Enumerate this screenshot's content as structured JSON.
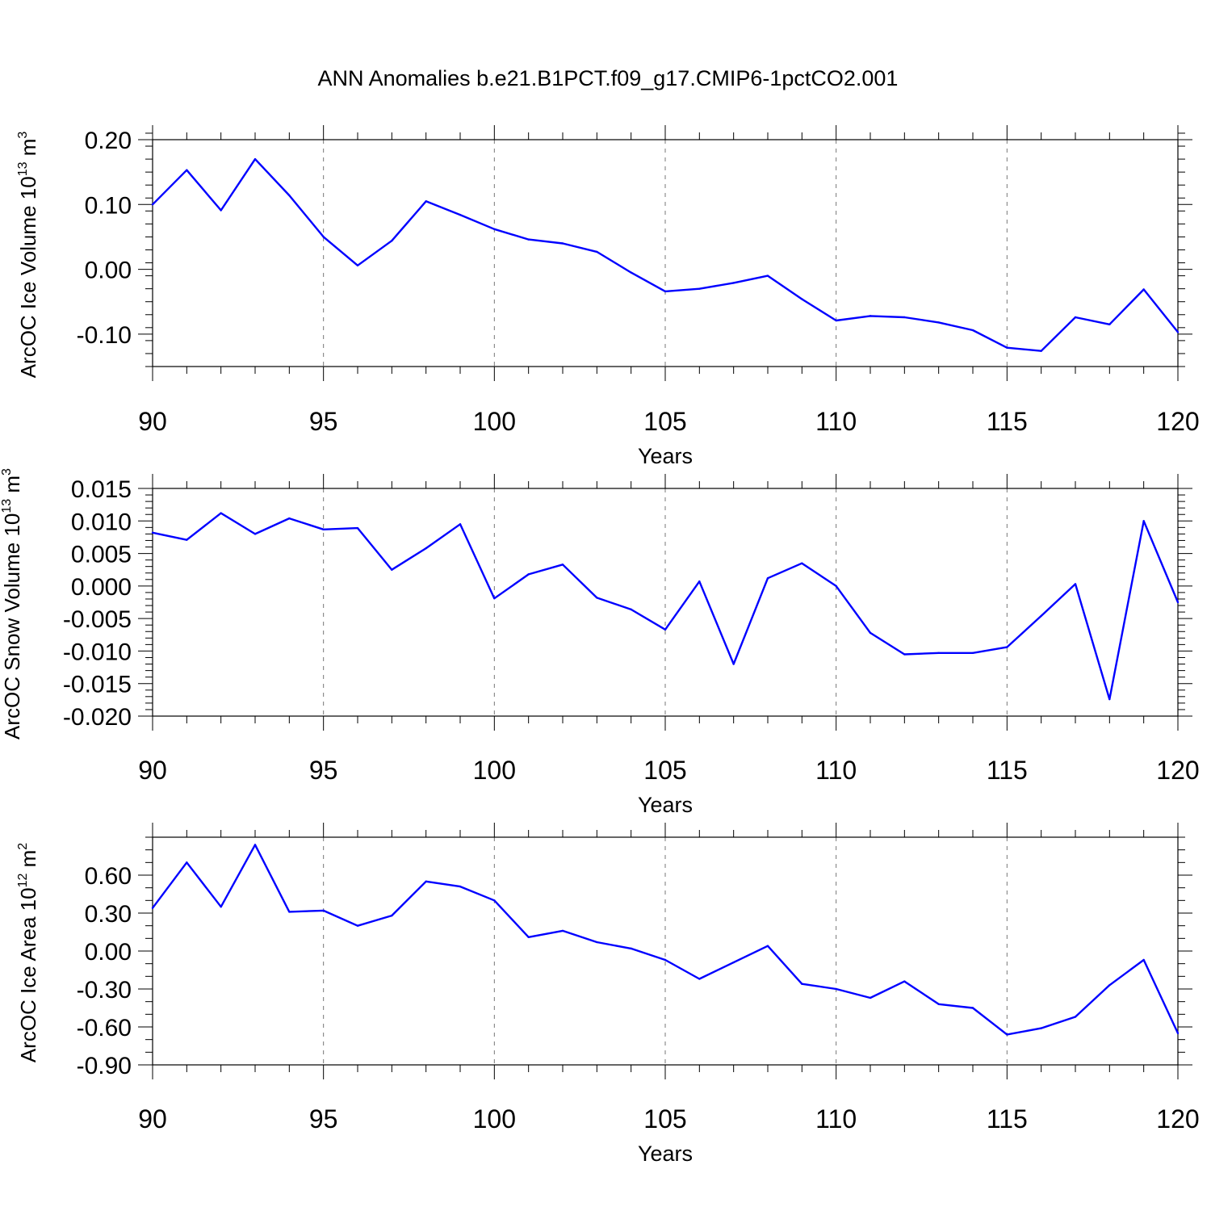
{
  "figure": {
    "title": "ANN Anomalies b.e21.B1PCT.f09_g17.CMIP6-1pctCO2.001"
  },
  "chart_data": [
    {
      "type": "line",
      "xlabel": "Years",
      "ylabel": {
        "text": "ArcOC Ice Volume 10",
        "exp": "13",
        "unit": " m",
        "unit_exp": "3"
      },
      "xlim": [
        90,
        120
      ],
      "ylim": [
        -0.15,
        0.2
      ],
      "x_ticks": [
        90,
        95,
        100,
        105,
        110,
        115,
        120
      ],
      "x_tick_labels": [
        "90",
        "95",
        "100",
        "105",
        "110",
        "115",
        "120"
      ],
      "y_ticks": [
        0.2,
        0.1,
        0.0,
        -0.1
      ],
      "y_tick_labels": [
        "0.20",
        "0.10",
        "0.00",
        "-0.10"
      ],
      "y_minor_step": 0.02,
      "grid": "x-major-dashed",
      "line_color": "#0000ff",
      "x": [
        90,
        91,
        92,
        93,
        94,
        95,
        96,
        97,
        98,
        99,
        100,
        101,
        102,
        103,
        104,
        105,
        106,
        107,
        108,
        109,
        110,
        111,
        112,
        113,
        114,
        115,
        116,
        117,
        118,
        119,
        120
      ],
      "values": [
        0.1,
        0.153,
        0.091,
        0.17,
        0.114,
        0.05,
        0.006,
        0.044,
        0.105,
        0.084,
        0.062,
        0.046,
        0.04,
        0.027,
        -0.005,
        -0.034,
        -0.03,
        -0.021,
        -0.01,
        -0.046,
        -0.079,
        -0.072,
        -0.074,
        -0.082,
        -0.094,
        -0.121,
        -0.126,
        -0.074,
        -0.085,
        -0.031,
        -0.097
      ]
    },
    {
      "type": "line",
      "xlabel": "Years",
      "ylabel": {
        "text": "ArcOC Snow Volume 10",
        "exp": "13",
        "unit": " m",
        "unit_exp": "3"
      },
      "xlim": [
        90,
        120
      ],
      "ylim": [
        -0.02,
        0.015
      ],
      "x_ticks": [
        90,
        95,
        100,
        105,
        110,
        115,
        120
      ],
      "x_tick_labels": [
        "90",
        "95",
        "100",
        "105",
        "110",
        "115",
        "120"
      ],
      "y_ticks": [
        0.015,
        0.01,
        0.005,
        0.0,
        -0.005,
        -0.01,
        -0.015,
        -0.02
      ],
      "y_tick_labels": [
        "0.015",
        "0.010",
        "0.005",
        "0.000",
        "-0.005",
        "-0.010",
        "-0.015",
        "-0.020"
      ],
      "y_minor_step": 0.001,
      "grid": "x-major-dashed",
      "line_color": "#0000ff",
      "x": [
        90,
        91,
        92,
        93,
        94,
        95,
        96,
        97,
        98,
        99,
        100,
        101,
        102,
        103,
        104,
        105,
        106,
        107,
        108,
        109,
        110,
        111,
        112,
        113,
        114,
        115,
        116,
        117,
        118,
        119,
        120
      ],
      "values": [
        0.0082,
        0.0071,
        0.0112,
        0.008,
        0.0104,
        0.0087,
        0.0089,
        0.0025,
        0.0058,
        0.0095,
        -0.0019,
        0.0018,
        0.0033,
        -0.0018,
        -0.0036,
        -0.0067,
        0.0007,
        -0.012,
        0.0012,
        0.0035,
        0.0,
        -0.0072,
        -0.0105,
        -0.0103,
        -0.0103,
        -0.0094,
        -0.0046,
        0.0003,
        -0.0174,
        0.01,
        -0.0025
      ]
    },
    {
      "type": "line",
      "xlabel": "Years",
      "ylabel": {
        "text": "ArcOC Ice Area 10",
        "exp": "12",
        "unit": " m",
        "unit_exp": "2"
      },
      "xlim": [
        90,
        120
      ],
      "ylim": [
        -0.9,
        0.9
      ],
      "x_ticks": [
        90,
        95,
        100,
        105,
        110,
        115,
        120
      ],
      "x_tick_labels": [
        "90",
        "95",
        "100",
        "105",
        "110",
        "115",
        "120"
      ],
      "y_ticks": [
        0.6,
        0.3,
        0.0,
        -0.3,
        -0.6,
        -0.9
      ],
      "y_tick_labels": [
        "0.60",
        "0.30",
        "0.00",
        "-0.30",
        "-0.60",
        "-0.90"
      ],
      "y_minor_step": 0.1,
      "grid": "x-major-dashed",
      "line_color": "#0000ff",
      "x": [
        90,
        91,
        92,
        93,
        94,
        95,
        96,
        97,
        98,
        99,
        100,
        101,
        102,
        103,
        104,
        105,
        106,
        107,
        108,
        109,
        110,
        111,
        112,
        113,
        114,
        115,
        116,
        117,
        118,
        119,
        120
      ],
      "values": [
        0.34,
        0.7,
        0.35,
        0.84,
        0.31,
        0.32,
        0.2,
        0.28,
        0.55,
        0.51,
        0.4,
        0.11,
        0.16,
        0.07,
        0.02,
        -0.07,
        -0.22,
        -0.09,
        0.04,
        -0.26,
        -0.3,
        -0.37,
        -0.24,
        -0.42,
        -0.45,
        -0.66,
        -0.61,
        -0.52,
        -0.27,
        -0.07,
        -0.65
      ]
    }
  ]
}
